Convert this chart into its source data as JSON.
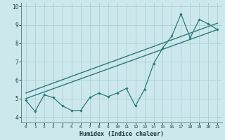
{
  "xlabel": "Humidex (Indice chaleur)",
  "xlim": [
    -0.5,
    21.5
  ],
  "ylim": [
    3.7,
    10.2
  ],
  "yticks": [
    4,
    5,
    6,
    7,
    8,
    9,
    10
  ],
  "xticks": [
    0,
    1,
    2,
    3,
    4,
    5,
    6,
    7,
    8,
    9,
    10,
    11,
    12,
    13,
    14,
    15,
    16,
    17,
    18,
    19,
    20,
    21
  ],
  "bg_color": "#cde8ec",
  "grid_color": "#aed4d8",
  "line_color": "#2a7a7a",
  "series1": {
    "x": [
      0,
      1,
      2,
      3,
      4,
      5,
      6,
      7,
      8,
      9,
      10,
      11,
      12,
      13,
      14,
      15,
      16,
      17,
      18,
      19,
      20,
      21
    ],
    "y": [
      4.9,
      4.3,
      5.2,
      5.05,
      4.6,
      4.35,
      4.35,
      5.05,
      5.3,
      5.1,
      5.3,
      5.55,
      4.6,
      5.5,
      6.9,
      7.75,
      8.4,
      9.6,
      8.3,
      9.3,
      9.05,
      8.75
    ]
  },
  "trend1_x": [
    0,
    21
  ],
  "trend1_y": [
    5.0,
    8.75
  ],
  "trend2_x": [
    0,
    21
  ],
  "trend2_y": [
    5.3,
    9.1
  ]
}
